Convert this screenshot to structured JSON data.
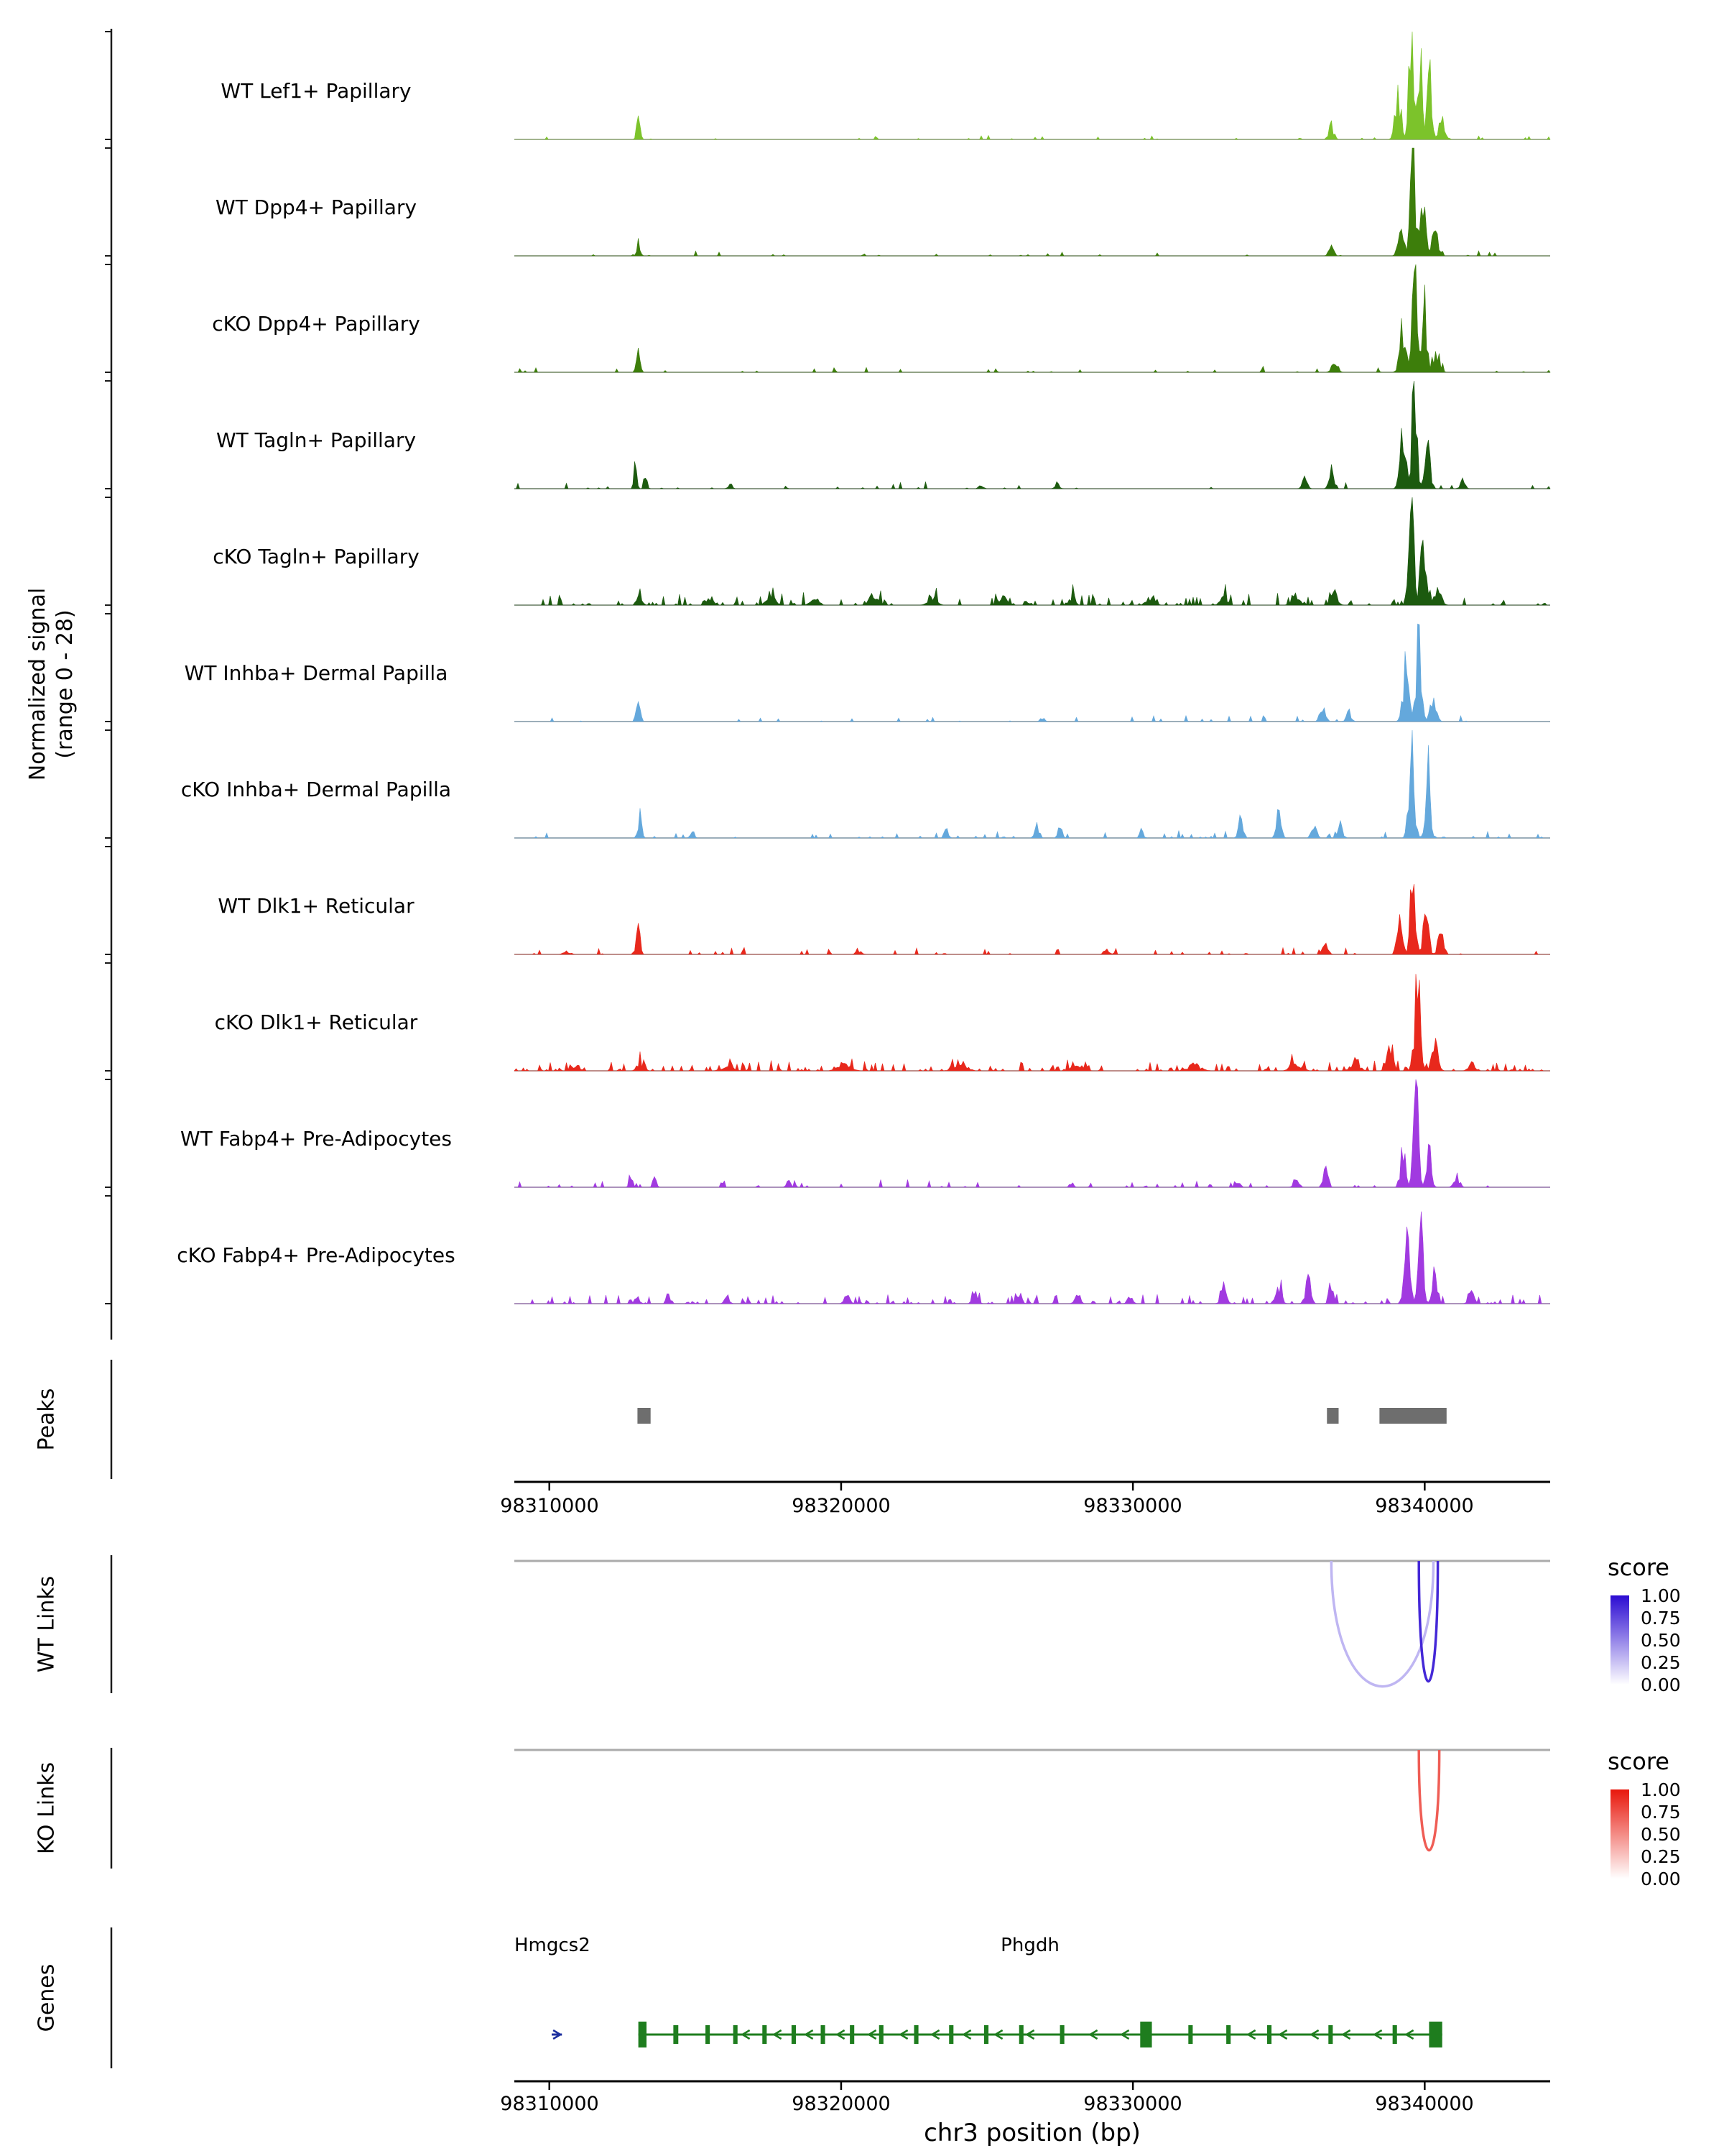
{
  "figure": {
    "signal_axis_title": "Normalized signal\n(range 0 - 28)",
    "xaxis_title": "chr3 position (bp)",
    "section_labels": {
      "peaks": "Peaks",
      "wt_links": "WT Links",
      "ko_links": "KO Links",
      "genes": "Genes"
    },
    "legend_title": "score"
  },
  "chart_data": {
    "type": "genome-tracks",
    "chromosome": "chr3",
    "x_range_bp": [
      98308800,
      98344300
    ],
    "signal_range": [
      0,
      28
    ],
    "x_ticks": [
      {
        "bp": 98310000,
        "label": "98310000"
      },
      {
        "bp": 98320000,
        "label": "98320000"
      },
      {
        "bp": 98330000,
        "label": "98330000"
      },
      {
        "bp": 98340000,
        "label": "98340000"
      }
    ],
    "tracks": [
      {
        "name": "WT Lef1+ Papillary",
        "color": "#7CC32B",
        "seed": 101,
        "noise_density": 0.05,
        "noise_amp": 0.6,
        "peaks": [
          [
            98313050,
            80,
            5
          ],
          [
            98336800,
            120,
            3.5
          ],
          [
            98339100,
            140,
            13
          ],
          [
            98339550,
            120,
            27
          ],
          [
            98339850,
            100,
            21
          ],
          [
            98340150,
            120,
            16
          ],
          [
            98340600,
            150,
            5
          ]
        ]
      },
      {
        "name": "WT Dpp4+ Papillary",
        "color": "#3D7E0B",
        "seed": 102,
        "noise_density": 0.05,
        "noise_amp": 0.6,
        "peaks": [
          [
            98313050,
            80,
            3.5
          ],
          [
            98336800,
            110,
            2.5
          ],
          [
            98339200,
            130,
            10
          ],
          [
            98339600,
            115,
            28
          ],
          [
            98339950,
            110,
            18
          ],
          [
            98340350,
            140,
            7
          ]
        ]
      },
      {
        "name": "cKO Dpp4+ Papillary",
        "color": "#3D7E0B",
        "seed": 103,
        "noise_density": 0.06,
        "noise_amp": 0.7,
        "peaks": [
          [
            98313050,
            85,
            5
          ],
          [
            98336900,
            130,
            4
          ],
          [
            98339250,
            140,
            12
          ],
          [
            98339650,
            115,
            25
          ],
          [
            98340000,
            115,
            16
          ],
          [
            98340400,
            150,
            6
          ]
        ]
      },
      {
        "name": "WT Tagln+ Papillary",
        "color": "#1C5A0F",
        "seed": 104,
        "noise_density": 0.07,
        "noise_amp": 0.8,
        "peaks": [
          [
            98312950,
            70,
            4.5
          ],
          [
            98313300,
            70,
            3.5
          ],
          [
            98316200,
            90,
            1.5
          ],
          [
            98324800,
            100,
            1.2
          ],
          [
            98327400,
            90,
            1.8
          ],
          [
            98335900,
            110,
            2.5
          ],
          [
            98336800,
            120,
            4.5
          ],
          [
            98339250,
            130,
            17
          ],
          [
            98339650,
            115,
            27
          ],
          [
            98340100,
            125,
            13
          ],
          [
            98341300,
            120,
            2
          ]
        ]
      },
      {
        "name": "cKO Tagln+ Papillary",
        "color": "#1C5A0F",
        "seed": 105,
        "noise_density": 0.22,
        "noise_amp": 1.5,
        "peaks": [
          [
            98313100,
            110,
            3
          ],
          [
            98315500,
            150,
            2.5
          ],
          [
            98317600,
            200,
            2.8
          ],
          [
            98319100,
            180,
            2.2
          ],
          [
            98321100,
            200,
            2.4
          ],
          [
            98323100,
            200,
            2.2
          ],
          [
            98325600,
            180,
            2
          ],
          [
            98327900,
            150,
            1.8
          ],
          [
            98330600,
            200,
            1.5
          ],
          [
            98333100,
            180,
            2
          ],
          [
            98335600,
            200,
            2.5
          ],
          [
            98336900,
            150,
            3
          ],
          [
            98339550,
            140,
            23
          ],
          [
            98339950,
            125,
            17
          ],
          [
            98340450,
            150,
            6
          ]
        ]
      },
      {
        "name": "WT Inhba+ Dermal Papilla",
        "color": "#64A8DC",
        "seed": 106,
        "noise_density": 0.05,
        "noise_amp": 0.7,
        "peaks": [
          [
            98313050,
            85,
            10
          ],
          [
            98326900,
            100,
            1
          ],
          [
            98336500,
            130,
            3.5
          ],
          [
            98337400,
            120,
            2.5
          ],
          [
            98339350,
            135,
            15
          ],
          [
            98339800,
            115,
            26
          ],
          [
            98340300,
            130,
            8
          ]
        ]
      },
      {
        "name": "cKO Inhba+ Dermal Papilla",
        "color": "#64A8DC",
        "seed": 107,
        "noise_density": 0.09,
        "noise_amp": 1.0,
        "peaks": [
          [
            98313100,
            95,
            6
          ],
          [
            98314900,
            85,
            2.5
          ],
          [
            98323600,
            100,
            2
          ],
          [
            98326700,
            105,
            3
          ],
          [
            98327500,
            95,
            2.5
          ],
          [
            98330300,
            90,
            2
          ],
          [
            98333700,
            105,
            5
          ],
          [
            98335000,
            105,
            7
          ],
          [
            98336200,
            115,
            4.5
          ],
          [
            98337100,
            115,
            4
          ],
          [
            98339550,
            125,
            27
          ],
          [
            98340100,
            115,
            19
          ]
        ]
      },
      {
        "name": "WT Dlk1+ Reticular",
        "color": "#E8281C",
        "seed": 108,
        "noise_density": 0.09,
        "noise_amp": 0.8,
        "peaks": [
          [
            98310600,
            140,
            1
          ],
          [
            98313050,
            85,
            7
          ],
          [
            98320600,
            140,
            0.8
          ],
          [
            98329100,
            140,
            1
          ],
          [
            98336600,
            125,
            3
          ],
          [
            98339150,
            125,
            12
          ],
          [
            98339600,
            115,
            25
          ],
          [
            98340050,
            115,
            16
          ],
          [
            98340550,
            140,
            5
          ]
        ]
      },
      {
        "name": "cKO Dlk1+ Reticular",
        "color": "#E8281C",
        "seed": 109,
        "noise_density": 0.28,
        "noise_amp": 1.2,
        "peaks": [
          [
            98310900,
            200,
            1.5
          ],
          [
            98313100,
            120,
            2.5
          ],
          [
            98316100,
            250,
            1.5
          ],
          [
            98320100,
            300,
            1.4
          ],
          [
            98324100,
            300,
            1.4
          ],
          [
            98328100,
            300,
            1.5
          ],
          [
            98332100,
            300,
            1.5
          ],
          [
            98335600,
            250,
            2
          ],
          [
            98337600,
            200,
            2.5
          ],
          [
            98338800,
            150,
            7
          ],
          [
            98339750,
            135,
            24
          ],
          [
            98340350,
            135,
            10
          ],
          [
            98341600,
            150,
            2
          ]
        ]
      },
      {
        "name": "WT Fabp4+ Pre-Adipocytes",
        "color": "#A13AE0",
        "seed": 110,
        "noise_density": 0.09,
        "noise_amp": 0.9,
        "peaks": [
          [
            98312800,
            80,
            4
          ],
          [
            98313600,
            80,
            3.5
          ],
          [
            98318200,
            95,
            1.5
          ],
          [
            98327900,
            95,
            1.2
          ],
          [
            98333600,
            105,
            1.5
          ],
          [
            98335600,
            115,
            3
          ],
          [
            98336600,
            115,
            4
          ],
          [
            98339250,
            125,
            9
          ],
          [
            98339700,
            115,
            23
          ],
          [
            98340150,
            115,
            9
          ],
          [
            98341100,
            125,
            3
          ]
        ]
      },
      {
        "name": "cKO Fabp4+ Pre-Adipocytes",
        "color": "#A13AE0",
        "seed": 111,
        "noise_density": 0.17,
        "noise_amp": 1.1,
        "peaks": [
          [
            98313000,
            100,
            3
          ],
          [
            98314100,
            95,
            2.5
          ],
          [
            98316100,
            110,
            2
          ],
          [
            98320200,
            120,
            2
          ],
          [
            98324600,
            120,
            2.5
          ],
          [
            98326100,
            115,
            2.5
          ],
          [
            98328100,
            120,
            2.5
          ],
          [
            98329900,
            115,
            1.8
          ],
          [
            98333100,
            130,
            3.5
          ],
          [
            98335000,
            125,
            5
          ],
          [
            98336000,
            125,
            7
          ],
          [
            98336800,
            115,
            5
          ],
          [
            98339400,
            125,
            15
          ],
          [
            98339850,
            115,
            22
          ],
          [
            98340350,
            125,
            7
          ],
          [
            98341600,
            125,
            2.5
          ]
        ]
      }
    ],
    "peaks_track": {
      "color": "#6E6E6E",
      "intervals": [
        [
          98313020,
          98313470
        ],
        [
          98336650,
          98337050
        ],
        [
          98338450,
          98340750
        ]
      ]
    },
    "wt_links": {
      "legend_title": "score",
      "legend_ticks": [
        "1.00",
        "0.75",
        "0.50",
        "0.25",
        "0.00"
      ],
      "gradient": [
        "#2B0BD2",
        "#FFFFFF"
      ],
      "arcs": [
        {
          "start": 98336800,
          "end": 98340300,
          "score": 0.3,
          "depth": 175
        },
        {
          "start": 98339800,
          "end": 98340450,
          "score": 0.88,
          "depth": 168
        }
      ]
    },
    "ko_links": {
      "legend_title": "score",
      "legend_ticks": [
        "1.00",
        "0.75",
        "0.50",
        "0.25",
        "0.00"
      ],
      "gradient": [
        "#E8170C",
        "#FFFFFF"
      ],
      "arcs": [
        {
          "start": 98339800,
          "end": 98340500,
          "score": 0.7,
          "depth": 140
        }
      ]
    },
    "genes": [
      {
        "name": "Hmgcs2",
        "start": 98310080,
        "end": 98310430,
        "strand": "+",
        "color": "#1C2F9E",
        "exons": []
      },
      {
        "name": "Phgdh",
        "start": 98313050,
        "end": 98340600,
        "strand": "-",
        "color": "#1E7D1E",
        "exons": [
          [
            98313050,
            98313330,
            1
          ],
          [
            98314250,
            98314420,
            0
          ],
          [
            98315350,
            98315500,
            0
          ],
          [
            98316300,
            98316450,
            0
          ],
          [
            98317300,
            98317450,
            0
          ],
          [
            98318300,
            98318450,
            0
          ],
          [
            98319300,
            98319450,
            0
          ],
          [
            98320300,
            98320450,
            0
          ],
          [
            98321300,
            98321450,
            0
          ],
          [
            98322500,
            98322650,
            0
          ],
          [
            98323700,
            98323850,
            0
          ],
          [
            98324900,
            98325050,
            0
          ],
          [
            98326100,
            98326250,
            0
          ],
          [
            98327500,
            98327650,
            0
          ],
          [
            98330250,
            98330650,
            1
          ],
          [
            98331900,
            98332050,
            0
          ],
          [
            98333200,
            98333350,
            0
          ],
          [
            98334600,
            98334750,
            0
          ],
          [
            98336700,
            98336850,
            0
          ],
          [
            98338900,
            98339050,
            0
          ],
          [
            98340150,
            98340600,
            1
          ]
        ]
      }
    ]
  }
}
